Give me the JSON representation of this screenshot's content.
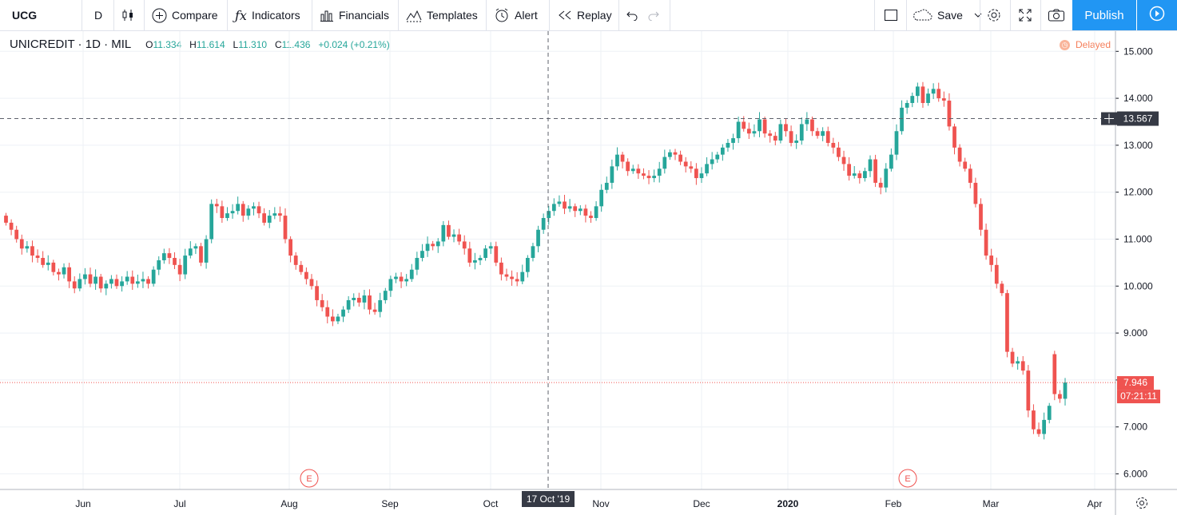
{
  "toolbar": {
    "symbol": "UCG",
    "interval": "D",
    "compare": "Compare",
    "indicators": "Indicators",
    "financials": "Financials",
    "templates": "Templates",
    "alert": "Alert",
    "replay": "Replay",
    "save": "Save",
    "publish": "Publish"
  },
  "legend": {
    "symbol": "UNICREDIT · 1D · MIL",
    "o_label": "O",
    "o_value": "11.334",
    "h_label": "H",
    "h_value": "11.614",
    "l_label": "L",
    "l_value": "11.310",
    "c_label": "C",
    "c_value": "11.436",
    "change": "+0.024 (+0.21%)"
  },
  "status": {
    "delayed": "Delayed",
    "delayed_icon": "clock-icon"
  },
  "colors": {
    "up": "#26a69a",
    "down": "#ef5350",
    "accent": "#2196f3",
    "grid": "#eef1f6"
  },
  "chart_data": {
    "type": "candlestick",
    "y_ticks": [
      "6.000",
      "7.000",
      "8.000",
      "9.000",
      "10.000",
      "11.000",
      "12.000",
      "13.000",
      "14.000",
      "15.000"
    ],
    "ylim": [
      5.6,
      15.4
    ],
    "x_ticks": [
      "Jun",
      "Jul",
      "Aug",
      "Sep",
      "Oct",
      "Nov",
      "Dec",
      "2020",
      "Feb",
      "Mar",
      "Apr"
    ],
    "crosshair": {
      "date_label": "17 Oct '19",
      "price_label": "13.567",
      "price": 13.567
    },
    "last_price": {
      "label": "7.946",
      "countdown": "07:21:11",
      "price": 7.946
    },
    "events": [
      {
        "label": "E",
        "x_label": "Aug"
      },
      {
        "label": "E",
        "x_label": "Feb"
      }
    ],
    "closes": [
      11.35,
      11.2,
      11.0,
      10.8,
      10.85,
      10.65,
      10.6,
      10.45,
      10.5,
      10.3,
      10.25,
      10.4,
      10.1,
      9.95,
      10.15,
      10.25,
      10.05,
      10.2,
      9.95,
      10.05,
      10.15,
      10.0,
      10.1,
      10.2,
      10.05,
      10.1,
      10.15,
      10.05,
      10.35,
      10.55,
      10.7,
      10.6,
      10.45,
      10.25,
      10.65,
      10.8,
      10.85,
      10.5,
      11.0,
      11.75,
      11.7,
      11.45,
      11.55,
      11.6,
      11.75,
      11.5,
      11.65,
      11.7,
      11.55,
      11.35,
      11.5,
      11.55,
      11.5,
      11.0,
      10.65,
      10.45,
      10.3,
      10.15,
      10.0,
      9.7,
      9.55,
      9.35,
      9.25,
      9.35,
      9.5,
      9.7,
      9.75,
      9.65,
      9.8,
      9.5,
      9.45,
      9.7,
      9.9,
      10.15,
      10.2,
      10.1,
      10.15,
      10.35,
      10.6,
      10.75,
      10.9,
      10.85,
      10.95,
      11.3,
      11.05,
      11.1,
      10.95,
      10.8,
      10.5,
      10.55,
      10.6,
      10.8,
      10.85,
      10.5,
      10.25,
      10.2,
      10.15,
      10.1,
      10.3,
      10.6,
      10.85,
      11.2,
      11.45,
      11.6,
      11.75,
      11.8,
      11.65,
      11.7,
      11.6,
      11.65,
      11.5,
      11.45,
      11.7,
      12.05,
      12.2,
      12.55,
      12.8,
      12.65,
      12.45,
      12.5,
      12.4,
      12.35,
      12.3,
      12.35,
      12.5,
      12.75,
      12.85,
      12.8,
      12.65,
      12.55,
      12.5,
      12.3,
      12.4,
      12.6,
      12.7,
      12.8,
      12.95,
      13.05,
      13.15,
      13.5,
      13.35,
      13.25,
      13.3,
      13.55,
      13.25,
      13.2,
      13.1,
      13.45,
      13.3,
      13.05,
      13.1,
      13.45,
      13.55,
      13.3,
      13.2,
      13.3,
      13.05,
      12.95,
      12.75,
      12.6,
      12.35,
      12.4,
      12.3,
      12.45,
      12.7,
      12.2,
      12.1,
      12.5,
      12.8,
      13.3,
      13.8,
      13.9,
      14.05,
      14.25,
      13.9,
      14.1,
      14.2,
      14.0,
      13.95,
      13.4,
      12.95,
      12.65,
      12.5,
      12.2,
      11.75,
      11.2,
      10.65,
      10.45,
      10.05,
      9.85,
      8.6,
      8.35,
      8.4,
      8.2,
      7.35,
      6.95,
      6.85,
      7.15,
      7.45,
      7.7,
      7.6,
      7.946
    ]
  }
}
